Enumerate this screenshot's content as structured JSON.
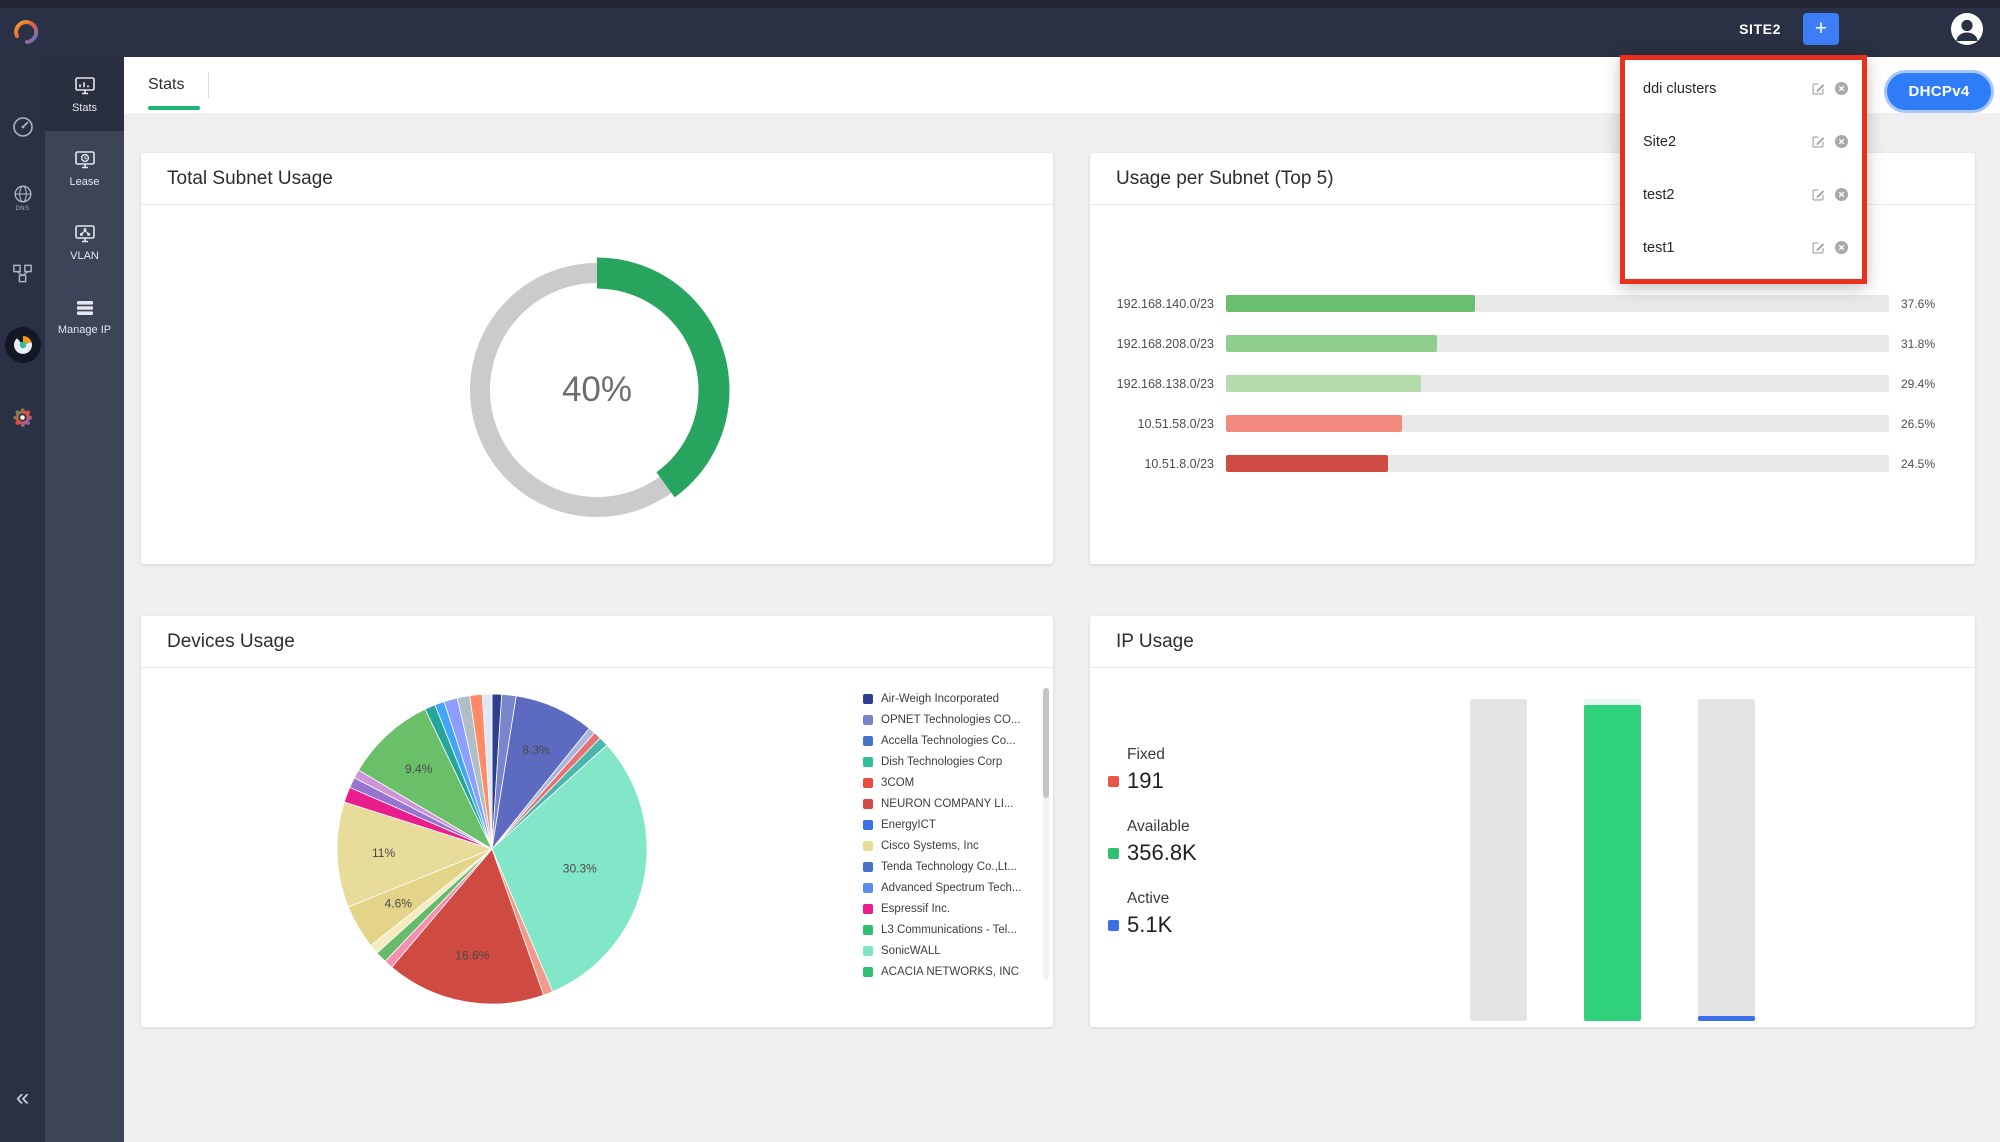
{
  "colors": {
    "accent_green": "#1eb573",
    "alert_red_border": "#e8301c",
    "primary_blue": "#2e7cf6",
    "topbar_bg": "#2b3144"
  },
  "topbar": {
    "site_label": "SITE2",
    "add_button": "+",
    "dhcp_badge": "DHCPv4"
  },
  "rail": {
    "dns_label": "DNS"
  },
  "sidebar": {
    "collapse": "«",
    "items": [
      {
        "label": "Stats",
        "active": true
      },
      {
        "label": "Lease",
        "active": false
      },
      {
        "label": "VLAN",
        "active": false
      },
      {
        "label": "Manage IP",
        "active": false
      }
    ]
  },
  "tabs": {
    "stats": "Stats"
  },
  "site_dropdown": {
    "items": [
      {
        "label": "ddi clusters"
      },
      {
        "label": "Site2"
      },
      {
        "label": "test2"
      },
      {
        "label": "test1"
      }
    ]
  },
  "cards": {
    "total_subnet": {
      "title": "Total Subnet Usage"
    },
    "usage_per_subnet": {
      "title": "Usage per Subnet (Top 5)"
    },
    "devices": {
      "title": "Devices Usage"
    },
    "ip_usage": {
      "title": "IP Usage",
      "stats": [
        {
          "label": "Fixed",
          "value": "191",
          "color": "#e8564a"
        },
        {
          "label": "Available",
          "value": "356.8K",
          "color": "#2fbf71"
        },
        {
          "label": "Active",
          "value": "5.1K",
          "color": "#3a6fe8"
        }
      ]
    }
  },
  "chart_data": [
    {
      "type": "donut",
      "title": "Total Subnet Usage",
      "value": 40,
      "unit": "%",
      "color": "#27a55f",
      "track_color": "#cbcbcb"
    },
    {
      "type": "bar",
      "orientation": "horizontal",
      "title": "Usage per Subnet (Top 5)",
      "categories": [
        "192.168.140.0/23",
        "192.168.208.0/23",
        "192.168.138.0/23",
        "10.51.58.0/23",
        "10.51.8.0/23"
      ],
      "values": [
        37.6,
        31.8,
        29.4,
        26.5,
        24.5
      ],
      "unit": "%",
      "colors": [
        "#6abf6e",
        "#8ecf8e",
        "#b4dcab",
        "#f28b7d",
        "#cf4a40"
      ],
      "track_color": "#e9e9e9",
      "xlim": [
        0,
        100
      ]
    },
    {
      "type": "pie",
      "title": "Devices Usage",
      "slices": [
        {
          "pct": 1.0,
          "color": "#2e3f8f"
        },
        {
          "pct": 1.5,
          "color": "#7986cb"
        },
        {
          "pct": 8.3,
          "color": "#5c6bc0",
          "label": "8.3%"
        },
        {
          "pct": 0.7,
          "color": "#aab6e0"
        },
        {
          "pct": 0.8,
          "color": "#e57373"
        },
        {
          "pct": 1.0,
          "color": "#4db6ac"
        },
        {
          "pct": 30.3,
          "color": "#82e6c8",
          "label": "30.3%"
        },
        {
          "pct": 1.0,
          "color": "#ef9a8a"
        },
        {
          "pct": 16.6,
          "color": "#cf4a40",
          "label": "16.6%"
        },
        {
          "pct": 0.9,
          "color": "#f48fb1"
        },
        {
          "pct": 1.2,
          "color": "#66bb6a"
        },
        {
          "pct": 1.0,
          "color": "#f4ecc0"
        },
        {
          "pct": 4.6,
          "color": "#e3d489",
          "label": "4.6%"
        },
        {
          "pct": 11.0,
          "color": "#e8dc9a",
          "label": "11%"
        },
        {
          "pct": 1.6,
          "color": "#e91e8c"
        },
        {
          "pct": 1.1,
          "color": "#9575cd"
        },
        {
          "pct": 0.9,
          "color": "#ce93d8"
        },
        {
          "pct": 9.4,
          "color": "#6abf69",
          "label": "9.4%"
        },
        {
          "pct": 1.1,
          "color": "#26a69a"
        },
        {
          "pct": 1.0,
          "color": "#42a5f5"
        },
        {
          "pct": 1.4,
          "color": "#8c9eff"
        },
        {
          "pct": 1.3,
          "color": "#b0bec5"
        },
        {
          "pct": 1.3,
          "color": "#ff8a65"
        },
        {
          "pct": 1.0,
          "color": "#dfe6f5"
        }
      ],
      "legend": [
        {
          "label": "Air-Weigh Incorporated",
          "color": "#2e3f8f"
        },
        {
          "label": "OPNET Technologies CO...",
          "color": "#7986cb"
        },
        {
          "label": "Accella Technologies Co...",
          "color": "#4472c4"
        },
        {
          "label": "Dish Technologies Corp",
          "color": "#2fbf9b"
        },
        {
          "label": "3COM",
          "color": "#e74c3c"
        },
        {
          "label": "NEURON COMPANY LI...",
          "color": "#cf4a40"
        },
        {
          "label": "EnergyICT",
          "color": "#3a6fe8"
        },
        {
          "label": "Cisco Systems, Inc",
          "color": "#e8dc9a"
        },
        {
          "label": "Tenda Technology Co.,Lt...",
          "color": "#4472c4"
        },
        {
          "label": "Advanced Spectrum Tech...",
          "color": "#5b8df0"
        },
        {
          "label": "Espressif Inc.",
          "color": "#e91e8c"
        },
        {
          "label": "L3 Communications - Tel...",
          "color": "#2fbf71"
        },
        {
          "label": "SonicWALL",
          "color": "#7fe3c4"
        },
        {
          "label": "ACACIA NETWORKS, INC",
          "color": "#2fbf71"
        }
      ]
    },
    {
      "type": "bar",
      "title": "IP Usage",
      "series": [
        {
          "name": "Fixed",
          "value": 191,
          "color": "#e8564a"
        },
        {
          "name": "Available",
          "value": 356800,
          "color": "#2fbf71"
        },
        {
          "name": "Active",
          "value": 5100,
          "color": "#3a6fe8"
        }
      ],
      "bars": [
        {
          "track_color": "#e4e4e4",
          "fill_color": "#e4e4e4",
          "fill_pct": 0
        },
        {
          "track_color": "#e9f7ee",
          "fill_color": "#2fd27a",
          "fill_pct": 98
        },
        {
          "track_color": "#e4e4e4",
          "fill_color": "#3a6fe8",
          "fill_pct": 1.6
        }
      ]
    }
  ]
}
